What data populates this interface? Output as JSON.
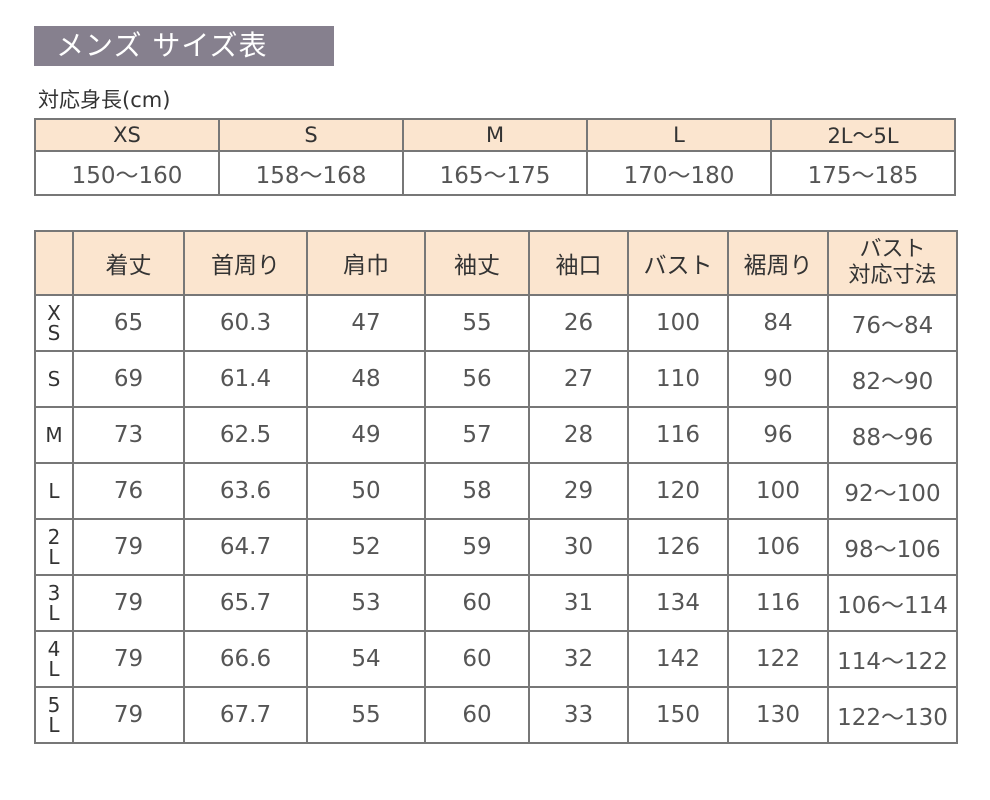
{
  "title": "メンズ サイズ表",
  "height_table": {
    "label": "対応身長(cm)",
    "sizes": [
      "XS",
      "S",
      "M",
      "L",
      "2L～5L"
    ],
    "ranges": [
      "150～160",
      "158～168",
      "165～175",
      "170～180",
      "175～185"
    ]
  },
  "size_table": {
    "headers": [
      "着丈",
      "首周り",
      "肩巾",
      "袖丈",
      "袖口",
      "バスト",
      "裾周り"
    ],
    "last_header": [
      "バスト",
      "対応寸法"
    ],
    "rows": [
      {
        "size": [
          "X",
          "S"
        ],
        "values": [
          "65",
          "60.3",
          "47",
          "55",
          "26",
          "100",
          "84",
          "76～84"
        ]
      },
      {
        "size": [
          "S"
        ],
        "values": [
          "69",
          "61.4",
          "48",
          "56",
          "27",
          "110",
          "90",
          "82～90"
        ]
      },
      {
        "size": [
          "M"
        ],
        "values": [
          "73",
          "62.5",
          "49",
          "57",
          "28",
          "116",
          "96",
          "88～96"
        ]
      },
      {
        "size": [
          "L"
        ],
        "values": [
          "76",
          "63.6",
          "50",
          "58",
          "29",
          "120",
          "100",
          "92～100"
        ]
      },
      {
        "size": [
          "2",
          "L"
        ],
        "values": [
          "79",
          "64.7",
          "52",
          "59",
          "30",
          "126",
          "106",
          "98～106"
        ]
      },
      {
        "size": [
          "3",
          "L"
        ],
        "values": [
          "79",
          "65.7",
          "53",
          "60",
          "31",
          "134",
          "116",
          "106～114"
        ]
      },
      {
        "size": [
          "4",
          "L"
        ],
        "values": [
          "79",
          "66.6",
          "54",
          "60",
          "32",
          "142",
          "122",
          "114～122"
        ]
      },
      {
        "size": [
          "5",
          "L"
        ],
        "values": [
          "79",
          "67.7",
          "55",
          "60",
          "33",
          "150",
          "130",
          "122～130"
        ]
      }
    ]
  },
  "colors": {
    "title_bg": "#86808e",
    "header_bg": "#fbe5cf",
    "border": "#777777"
  }
}
